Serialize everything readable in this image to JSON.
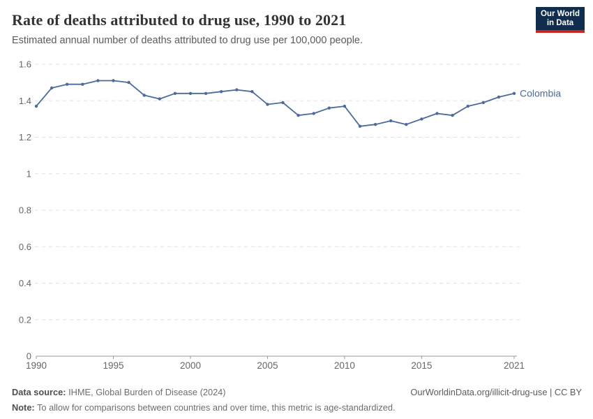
{
  "header": {
    "title": "Rate of deaths attributed to drug use, 1990 to 2021",
    "subtitle": "Estimated annual number of deaths attributed to drug use per 100,000 people.",
    "logo": {
      "line1": "Our World",
      "line2": "in Data"
    }
  },
  "chart_data": {
    "type": "line",
    "title": "Rate of deaths attributed to drug use, 1990 to 2021",
    "xlabel": "",
    "ylabel": "",
    "xlim": [
      1990,
      2021
    ],
    "ylim": [
      0,
      1.6
    ],
    "grid": "horizontal-dashed",
    "legend_position": "end-of-line-label",
    "xticks": [
      1990,
      1995,
      2000,
      2005,
      2010,
      2015,
      2021
    ],
    "xtick_labels": [
      "1990",
      "1995",
      "2000",
      "2005",
      "2010",
      "2015",
      "2021"
    ],
    "yticks": [
      0,
      0.2,
      0.4,
      0.6,
      0.8,
      1,
      1.2,
      1.4,
      1.6
    ],
    "ytick_labels": [
      "0",
      "0.2",
      "0.4",
      "0.6",
      "0.8",
      "1",
      "1.2",
      "1.4",
      "1.6"
    ],
    "x": [
      1990,
      1991,
      1992,
      1993,
      1994,
      1995,
      1996,
      1997,
      1998,
      1999,
      2000,
      2001,
      2002,
      2003,
      2004,
      2005,
      2006,
      2007,
      2008,
      2009,
      2010,
      2011,
      2012,
      2013,
      2014,
      2015,
      2016,
      2017,
      2018,
      2019,
      2020,
      2021
    ],
    "series": [
      {
        "name": "Colombia",
        "color": "#4c6a9c",
        "values": [
          1.37,
          1.47,
          1.49,
          1.49,
          1.51,
          1.51,
          1.5,
          1.43,
          1.41,
          1.44,
          1.44,
          1.44,
          1.45,
          1.46,
          1.45,
          1.38,
          1.39,
          1.32,
          1.33,
          1.36,
          1.37,
          1.26,
          1.27,
          1.29,
          1.27,
          1.3,
          1.33,
          1.32,
          1.37,
          1.39,
          1.42,
          1.44
        ]
      }
    ]
  },
  "footer": {
    "datasource_label": "Data source:",
    "datasource_value": " IHME, Global Burden of Disease (2024)",
    "credit": "OurWorldinData.org/illicit-drug-use | CC BY",
    "note_label": "Note:",
    "note_value": " To allow for comparisons between countries and over time, this metric is age-standardized."
  },
  "colors": {
    "line": "#4c6a9c",
    "grid": "#e0e0e0",
    "axis": "#999999",
    "tick_text": "#666666",
    "logo_bg": "#102d4e",
    "logo_red": "#c9271d"
  }
}
